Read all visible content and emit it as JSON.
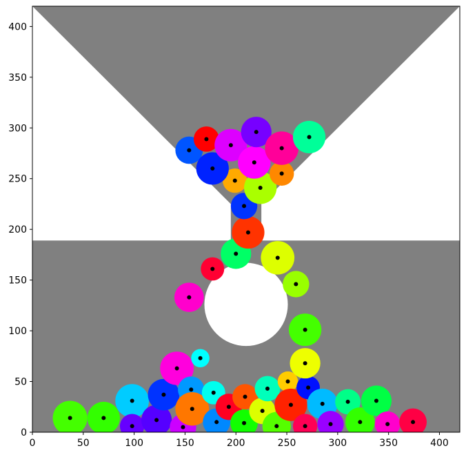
{
  "chart_data": {
    "type": "scatter",
    "title": "",
    "xlabel": "",
    "ylabel": "",
    "xlim": [
      0,
      420
    ],
    "ylim": [
      0,
      420
    ],
    "grid": false,
    "legend": "none",
    "xticks": [
      0,
      50,
      100,
      150,
      200,
      250,
      300,
      350,
      400
    ],
    "yticks": [
      0,
      50,
      100,
      150,
      200,
      250,
      300,
      350,
      400
    ],
    "background_color": "#808080",
    "hopper": {
      "top_y": 420,
      "neck_left_x": 195,
      "neck_right_x": 225,
      "neck_bottom_y": 189,
      "cone_bottom_y": 225,
      "color": "#ffffff"
    },
    "obstacle": {
      "x": 210,
      "y": 126,
      "r": 41,
      "color": "#ffffff"
    },
    "particles": [
      {
        "x": 37,
        "y": 14,
        "r": 17,
        "color": "#44ff00"
      },
      {
        "x": 70,
        "y": 14,
        "r": 16,
        "color": "#33ff00"
      },
      {
        "x": 98,
        "y": 31,
        "r": 16.5,
        "color": "#00ccff"
      },
      {
        "x": 98,
        "y": 6,
        "r": 12,
        "color": "#6600ff"
      },
      {
        "x": 122,
        "y": 12,
        "r": 15,
        "color": "#5500ff"
      },
      {
        "x": 129,
        "y": 37,
        "r": 15.5,
        "color": "#0033ff"
      },
      {
        "x": 142,
        "y": 63,
        "r": 16.5,
        "color": "#ff00dd"
      },
      {
        "x": 148,
        "y": 5,
        "r": 13,
        "color": "#cc00ff"
      },
      {
        "x": 156,
        "y": 42,
        "r": 13,
        "color": "#0099ff"
      },
      {
        "x": 157,
        "y": 23,
        "r": 16.5,
        "color": "#ff7700"
      },
      {
        "x": 165,
        "y": 73,
        "r": 9,
        "color": "#00ffff"
      },
      {
        "x": 178,
        "y": 39,
        "r": 11.5,
        "color": "#00ffee"
      },
      {
        "x": 181,
        "y": 10,
        "r": 13.5,
        "color": "#0088ff"
      },
      {
        "x": 193,
        "y": 25,
        "r": 13,
        "color": "#ff0022"
      },
      {
        "x": 209,
        "y": 35,
        "r": 12.5,
        "color": "#ff5500"
      },
      {
        "x": 208,
        "y": 9,
        "r": 13.5,
        "color": "#11ff00"
      },
      {
        "x": 226,
        "y": 21,
        "r": 13,
        "color": "#ddff00"
      },
      {
        "x": 231,
        "y": 43,
        "r": 12.5,
        "color": "#00ffbb"
      },
      {
        "x": 240,
        "y": 6,
        "r": 14,
        "color": "#55ff00"
      },
      {
        "x": 251,
        "y": 50,
        "r": 10,
        "color": "#ffcc00"
      },
      {
        "x": 254,
        "y": 27,
        "r": 16,
        "color": "#ff2200"
      },
      {
        "x": 271,
        "y": 44,
        "r": 11.5,
        "color": "#0011ff"
      },
      {
        "x": 268,
        "y": 6,
        "r": 12,
        "color": "#ff0055"
      },
      {
        "x": 268,
        "y": 68,
        "r": 15,
        "color": "#eeff00"
      },
      {
        "x": 285,
        "y": 28,
        "r": 15,
        "color": "#00bbff"
      },
      {
        "x": 293,
        "y": 8,
        "r": 13,
        "color": "#9900ff"
      },
      {
        "x": 310,
        "y": 30,
        "r": 12.5,
        "color": "#00ff88"
      },
      {
        "x": 322,
        "y": 10,
        "r": 14.5,
        "color": "#33ff00"
      },
      {
        "x": 338,
        "y": 31,
        "r": 15,
        "color": "#00ff44"
      },
      {
        "x": 349,
        "y": 8,
        "r": 12.5,
        "color": "#ff00cc"
      },
      {
        "x": 374,
        "y": 10,
        "r": 13.5,
        "color": "#ff0044"
      },
      {
        "x": 268,
        "y": 101,
        "r": 16,
        "color": "#44ff00"
      },
      {
        "x": 259,
        "y": 146,
        "r": 13,
        "color": "#99ff00"
      },
      {
        "x": 154,
        "y": 133,
        "r": 14.5,
        "color": "#ff00cc"
      },
      {
        "x": 177,
        "y": 161,
        "r": 11.5,
        "color": "#ff0033"
      },
      {
        "x": 200,
        "y": 176,
        "r": 15,
        "color": "#00ff66"
      },
      {
        "x": 241,
        "y": 172,
        "r": 16.5,
        "color": "#ddff00"
      },
      {
        "x": 212,
        "y": 197,
        "r": 16,
        "color": "#ff3300"
      },
      {
        "x": 208,
        "y": 223,
        "r": 13,
        "color": "#0033ff"
      },
      {
        "x": 199,
        "y": 248,
        "r": 12,
        "color": "#ffaa00"
      },
      {
        "x": 224,
        "y": 241,
        "r": 16,
        "color": "#aaff00"
      },
      {
        "x": 245,
        "y": 255,
        "r": 12,
        "color": "#ff8800"
      },
      {
        "x": 154,
        "y": 278,
        "r": 13.5,
        "color": "#0055ff"
      },
      {
        "x": 177,
        "y": 260,
        "r": 16,
        "color": "#0022ff"
      },
      {
        "x": 171,
        "y": 289,
        "r": 12.5,
        "color": "#ff0000"
      },
      {
        "x": 195,
        "y": 283,
        "r": 16,
        "color": "#dd00ff"
      },
      {
        "x": 218,
        "y": 266,
        "r": 16,
        "color": "#ff00ff"
      },
      {
        "x": 220,
        "y": 296,
        "r": 15,
        "color": "#7700ff"
      },
      {
        "x": 245,
        "y": 280,
        "r": 16.5,
        "color": "#ff0099"
      },
      {
        "x": 272,
        "y": 291,
        "r": 16,
        "color": "#00ff99"
      }
    ]
  }
}
